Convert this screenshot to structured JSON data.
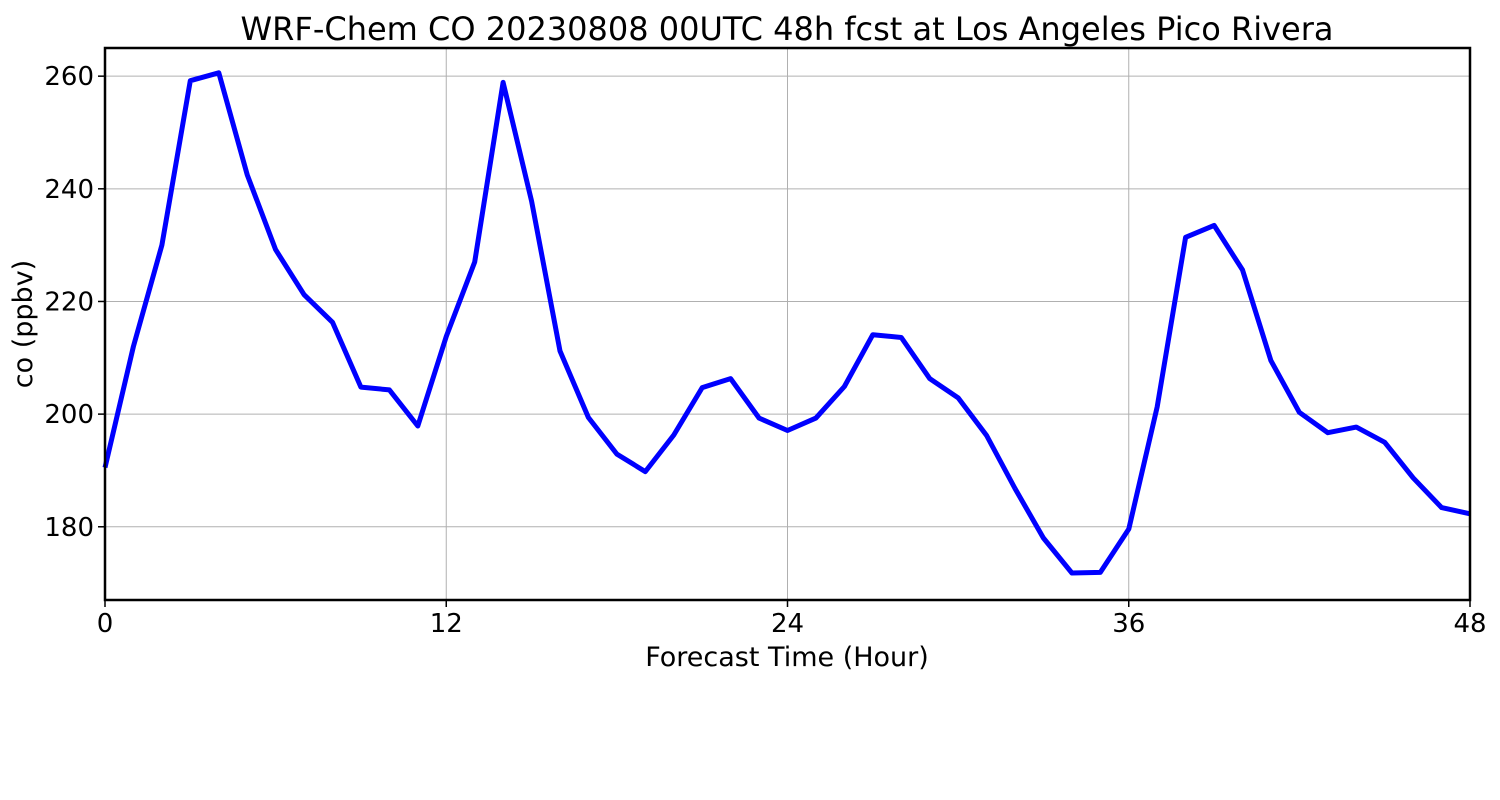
{
  "chart_data": {
    "type": "line",
    "title": "WRF-Chem CO  20230808 00UTC 48h fcst at Los Angeles Pico Rivera",
    "xlabel": "Forecast Time (Hour)",
    "ylabel": "co  (ppbv)",
    "xlim": [
      0,
      48
    ],
    "ylim": [
      167,
      265
    ],
    "xticks": [
      0,
      12,
      24,
      36,
      48
    ],
    "xtick_labels": [
      "0",
      "12",
      "24",
      "36",
      "48"
    ],
    "yticks": [
      180,
      200,
      220,
      240,
      260
    ],
    "ytick_labels": [
      "180",
      "200",
      "220",
      "240",
      "260"
    ],
    "grid": true,
    "series": [
      {
        "color": "#0000ff",
        "x": [
          0,
          1,
          2,
          3,
          4,
          5,
          6,
          7,
          8,
          9,
          10,
          11,
          12,
          13,
          14,
          15,
          16,
          17,
          18,
          19,
          20,
          21,
          22,
          23,
          24,
          25,
          26,
          27,
          28,
          29,
          30,
          31,
          32,
          33,
          34,
          35,
          36,
          37,
          38,
          39,
          40,
          41,
          42,
          43,
          44,
          45,
          46,
          47,
          48
        ],
        "values": [
          190.5,
          212.0,
          230.0,
          259.2,
          260.6,
          242.5,
          229.2,
          221.2,
          216.3,
          204.8,
          204.3,
          197.9,
          213.8,
          227.0,
          258.9,
          237.8,
          211.2,
          199.4,
          192.9,
          189.8,
          196.3,
          204.7,
          206.3,
          199.3,
          197.1,
          199.3,
          204.9,
          214.1,
          213.6,
          206.3,
          202.9,
          196.2,
          186.8,
          178.0,
          171.8,
          171.9,
          179.6,
          201.3,
          231.4,
          233.5,
          225.6,
          209.5,
          200.3,
          196.7,
          197.7,
          195.0,
          188.7,
          183.4,
          182.3
        ]
      }
    ]
  }
}
